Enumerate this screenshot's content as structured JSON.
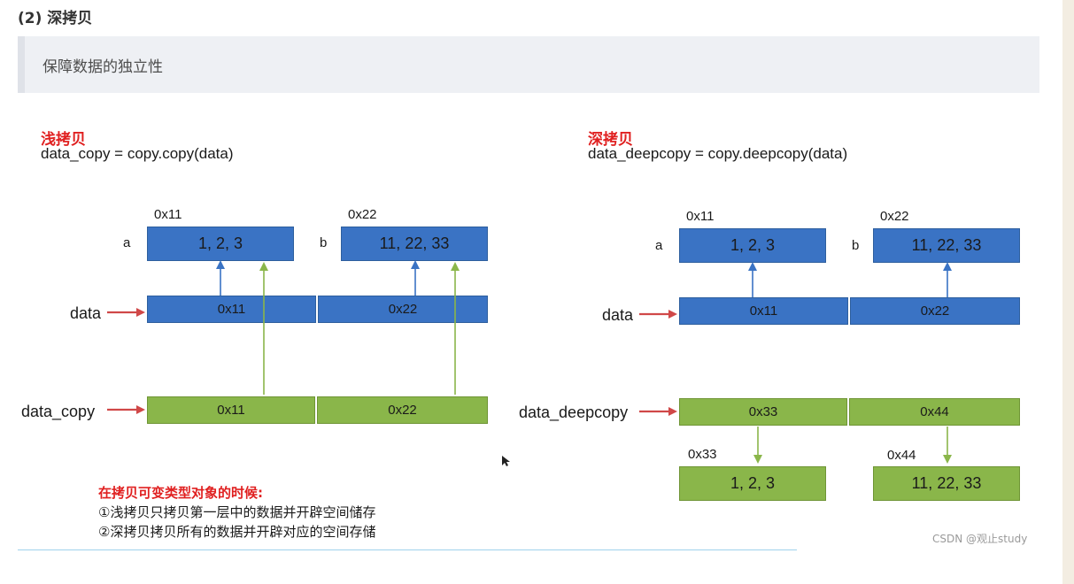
{
  "heading": "(2) 深拷贝",
  "quote": "保障数据的独立性",
  "shallow": {
    "title": "浅拷贝",
    "code": "data_copy = copy.copy(data)",
    "addr_a": "0x11",
    "addr_b": "0x22",
    "var_a": "a",
    "var_b": "b",
    "val_a": "1, 2, 3",
    "val_b": "11, 22, 33",
    "data_label": "data",
    "data_cells": [
      "0x11",
      "0x22"
    ],
    "copy_label": "data_copy",
    "copy_cells": [
      "0x11",
      "0x22"
    ]
  },
  "deep": {
    "title": "深拷贝",
    "code": "data_deepcopy = copy.deepcopy(data)",
    "addr_a": "0x11",
    "addr_b": "0x22",
    "var_a": "a",
    "var_b": "b",
    "val_a": "1, 2, 3",
    "val_b": "11, 22, 33",
    "data_label": "data",
    "data_cells": [
      "0x11",
      "0x22"
    ],
    "copy_label": "data_deepcopy",
    "copy_cells": [
      "0x33",
      "0x44"
    ],
    "new_addr_a": "0x33",
    "new_addr_b": "0x44",
    "new_val_a": "1, 2, 3",
    "new_val_b": "11, 22, 33"
  },
  "notes": {
    "title": "在拷贝可变类型对象的时候:",
    "line1": "①浅拷贝只拷贝第一层中的数据并开辟空间储存",
    "line2": "②深拷贝拷贝所有的数据并开辟对应的空间存储"
  },
  "watermark": "CSDN @观止study",
  "colors": {
    "blue": "#3a73c4",
    "green": "#8ab64a",
    "red_arrow": "#d04848",
    "title_red": "#e02020"
  }
}
